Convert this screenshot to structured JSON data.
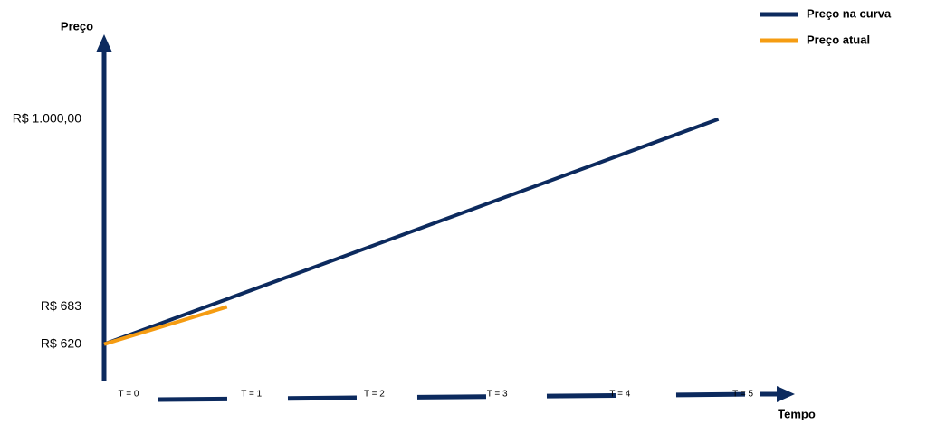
{
  "chart_data": {
    "type": "line",
    "y_label": "Preço",
    "x_label": "Tempo",
    "xlim": [
      0,
      5.6
    ],
    "xticks": [
      {
        "value": 0,
        "label": "T = 0"
      },
      {
        "value": 1,
        "label": "T = 1"
      },
      {
        "value": 2,
        "label": "T = 2"
      },
      {
        "value": 3,
        "label": "T = 3"
      },
      {
        "value": 4,
        "label": "T = 4"
      },
      {
        "value": 5,
        "label": "T = 5"
      }
    ],
    "ylim": [
      560,
      1140
    ],
    "yticks": [
      {
        "value": 620,
        "label": "R$ 620"
      },
      {
        "value": 683,
        "label": "R$ 683"
      },
      {
        "value": 1000,
        "label": "R$ 1.000,00"
      }
    ],
    "grid": false,
    "legend": "upper right",
    "series": [
      {
        "name": "Preço na curva",
        "color": "#0c2a5e",
        "x": [
          0,
          5
        ],
        "values": [
          620,
          1000
        ]
      },
      {
        "name": "Preço atual",
        "color": "#f59c12",
        "x": [
          0,
          1
        ],
        "values": [
          620,
          683
        ]
      }
    ]
  }
}
